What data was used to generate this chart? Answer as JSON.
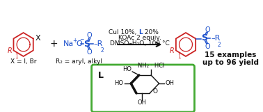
{
  "fig_width": 3.78,
  "fig_height": 1.61,
  "dpi": 100,
  "bg_color": "#ffffff",
  "red_color": "#cc2222",
  "blue_color": "#1a4fcc",
  "black_color": "#111111",
  "green_box_color": "#44aa33",
  "arrow_color": "#111111",
  "cond1_black": "CuI 10%, ",
  "cond1_blue": "L",
  "cond1_black2": " 20%",
  "cond2": "KOAc 2 equiv.",
  "cond3": "DMSO–H₂O, 100 °C",
  "label_X": "X = I, Br",
  "label_R2": "R₂ = aryl, alkyl",
  "label_15ex": "15 examples",
  "label_yield": "up to 96 yield",
  "label_L": "L"
}
